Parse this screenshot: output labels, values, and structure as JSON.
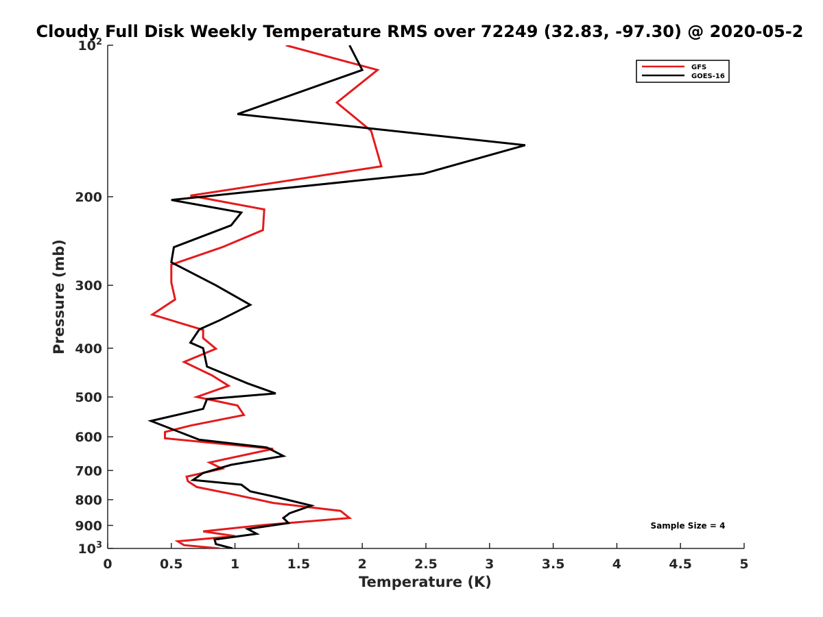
{
  "chart_data": {
    "type": "line",
    "title": "Cloudy Full Disk Weekly Temperature RMS over 72249 (32.83, -97.30) @ 2020-05-2",
    "xlabel": "Temperature (K)",
    "ylabel": "Pressure (mb)",
    "xlim": [
      0,
      5
    ],
    "ylim": [
      1000,
      100
    ],
    "yscale": "log",
    "yaxis_reversed": true,
    "xticks": [
      "0",
      "0.5",
      "1",
      "1.5",
      "2",
      "2.5",
      "3",
      "3.5",
      "4",
      "4.5",
      "5"
    ],
    "yticks": [
      {
        "value": 100,
        "base": "10",
        "exp": "2"
      },
      {
        "value": 200,
        "label": "200"
      },
      {
        "value": 300,
        "label": "300"
      },
      {
        "value": 400,
        "label": "400"
      },
      {
        "value": 500,
        "label": "500"
      },
      {
        "value": 600,
        "label": "600"
      },
      {
        "value": 700,
        "label": "700"
      },
      {
        "value": 800,
        "label": "800"
      },
      {
        "value": 900,
        "label": "900"
      },
      {
        "value": 1000,
        "base": "10",
        "exp": "3"
      }
    ],
    "grid": false,
    "legend_position": "top-right",
    "annotation": "Sample Size = 4",
    "series": [
      {
        "name": "GFS",
        "color": "#e41a1c",
        "points": [
          [
            1.4,
            100
          ],
          [
            2.12,
            112
          ],
          [
            1.8,
            130
          ],
          [
            2.07,
            148
          ],
          [
            2.15,
            174
          ],
          [
            0.65,
            199
          ],
          [
            1.23,
            212
          ],
          [
            1.22,
            233
          ],
          [
            0.9,
            252
          ],
          [
            0.5,
            273
          ],
          [
            0.5,
            296
          ],
          [
            0.53,
            320
          ],
          [
            0.35,
            343
          ],
          [
            0.75,
            368
          ],
          [
            0.75,
            382
          ],
          [
            0.85,
            401
          ],
          [
            0.6,
            426
          ],
          [
            0.82,
            453
          ],
          [
            0.95,
            475
          ],
          [
            0.7,
            500
          ],
          [
            1.02,
            520
          ],
          [
            1.07,
            543
          ],
          [
            0.65,
            570
          ],
          [
            0.45,
            587
          ],
          [
            0.45,
            604
          ],
          [
            1.3,
            634
          ],
          [
            0.8,
            675
          ],
          [
            0.9,
            694
          ],
          [
            0.62,
            720
          ],
          [
            0.63,
            735
          ],
          [
            0.7,
            755
          ],
          [
            0.98,
            780
          ],
          [
            1.3,
            812
          ],
          [
            1.83,
            842
          ],
          [
            1.9,
            870
          ],
          [
            1.23,
            898
          ],
          [
            0.75,
            925
          ],
          [
            1.0,
            945
          ],
          [
            0.55,
            968
          ],
          [
            0.6,
            985
          ],
          [
            0.88,
            1000
          ]
        ]
      },
      {
        "name": "GOES-16",
        "color": "#000000",
        "points": [
          [
            1.9,
            100
          ],
          [
            2.0,
            112
          ],
          [
            1.02,
            137
          ],
          [
            3.28,
            158
          ],
          [
            2.48,
            180
          ],
          [
            0.5,
            203
          ],
          [
            1.05,
            215
          ],
          [
            0.97,
            228
          ],
          [
            0.52,
            252
          ],
          [
            0.5,
            270
          ],
          [
            0.85,
            300
          ],
          [
            1.12,
            328
          ],
          [
            0.88,
            352
          ],
          [
            0.72,
            367
          ],
          [
            0.65,
            390
          ],
          [
            0.75,
            400
          ],
          [
            0.78,
            435
          ],
          [
            1.1,
            470
          ],
          [
            1.32,
            492
          ],
          [
            0.78,
            505
          ],
          [
            0.75,
            528
          ],
          [
            0.34,
            558
          ],
          [
            0.72,
            608
          ],
          [
            1.25,
            630
          ],
          [
            1.38,
            655
          ],
          [
            0.97,
            682
          ],
          [
            0.75,
            708
          ],
          [
            0.67,
            731
          ],
          [
            1.05,
            747
          ],
          [
            1.12,
            770
          ],
          [
            1.32,
            790
          ],
          [
            1.6,
            822
          ],
          [
            1.43,
            851
          ],
          [
            1.38,
            870
          ],
          [
            1.42,
            890
          ],
          [
            1.1,
            915
          ],
          [
            1.17,
            935
          ],
          [
            0.84,
            960
          ],
          [
            0.85,
            980
          ],
          [
            0.98,
            1000
          ]
        ]
      }
    ]
  }
}
